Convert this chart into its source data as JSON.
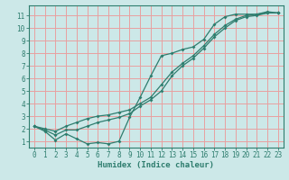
{
  "xlabel": "Humidex (Indice chaleur)",
  "background_color": "#cce8e8",
  "grid_color": "#e8a0a0",
  "line_color": "#2e7d6e",
  "xlim": [
    -0.5,
    23.5
  ],
  "ylim": [
    0.5,
    11.8
  ],
  "xticks": [
    0,
    1,
    2,
    3,
    4,
    5,
    6,
    7,
    8,
    9,
    10,
    11,
    12,
    13,
    14,
    15,
    16,
    17,
    18,
    19,
    20,
    21,
    22,
    23
  ],
  "yticks": [
    1,
    2,
    3,
    4,
    5,
    6,
    7,
    8,
    9,
    10,
    11
  ],
  "line1_x": [
    0,
    1,
    2,
    3,
    4,
    5,
    6,
    7,
    8,
    9,
    10,
    11,
    12,
    13,
    14,
    15,
    16,
    17,
    18,
    19,
    20,
    21,
    22,
    23
  ],
  "line1_y": [
    2.2,
    1.8,
    1.1,
    1.6,
    1.2,
    0.8,
    0.9,
    0.8,
    1.0,
    2.9,
    4.5,
    6.2,
    7.8,
    8.0,
    8.3,
    8.5,
    9.1,
    10.3,
    10.9,
    11.1,
    11.1,
    11.1,
    11.3,
    11.2
  ],
  "line2_x": [
    0,
    1,
    2,
    3,
    4,
    5,
    6,
    7,
    8,
    9,
    10,
    11,
    12,
    13,
    14,
    15,
    16,
    17,
    18,
    19,
    20,
    21,
    22,
    23
  ],
  "line2_y": [
    2.2,
    2.0,
    1.8,
    2.2,
    2.5,
    2.8,
    3.0,
    3.1,
    3.3,
    3.5,
    4.0,
    4.5,
    5.5,
    6.5,
    7.2,
    7.8,
    8.6,
    9.5,
    10.2,
    10.7,
    11.0,
    11.1,
    11.2,
    11.2
  ],
  "line3_x": [
    0,
    1,
    2,
    3,
    4,
    5,
    6,
    7,
    8,
    9,
    10,
    11,
    12,
    13,
    14,
    15,
    16,
    17,
    18,
    19,
    20,
    21,
    22,
    23
  ],
  "line3_y": [
    2.2,
    1.9,
    1.5,
    1.9,
    1.9,
    2.2,
    2.5,
    2.7,
    2.9,
    3.2,
    3.8,
    4.3,
    5.0,
    6.2,
    7.0,
    7.6,
    8.4,
    9.3,
    10.0,
    10.6,
    10.9,
    11.0,
    11.2,
    11.2
  ],
  "tick_fontsize": 5.5,
  "xlabel_fontsize": 6.5,
  "marker_size": 2.0,
  "line_width": 0.9
}
